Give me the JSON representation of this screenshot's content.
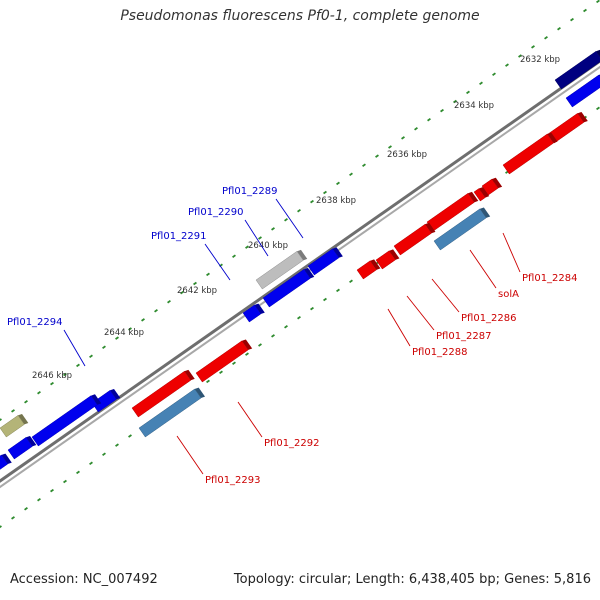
{
  "title": "Pseudomonas fluorescens Pf0-1, complete genome",
  "footer": {
    "accession": "Accession: NC_007492",
    "summary": "Topology: circular; Length: 6,438,405 bp; Genes: 5,816"
  },
  "colors": {
    "background": "#ffffff",
    "backbone": "#8a8a8a",
    "tick": "#2e8b2e",
    "forward_cds": "#0000ee",
    "reverse_cds": "#ee0000",
    "forward_label": "#0000cc",
    "reverse_label": "#cc0000",
    "reverse_rna": "#4682b4",
    "pseudo": "#bdbdbd",
    "other": "#b4b478",
    "dark_cds": "#000080"
  },
  "scale": {
    "unit": "kbp",
    "labels": [
      "2632 kbp",
      "2634 kbp",
      "2636 kbp",
      "2638 kbp",
      "2640 kbp",
      "2642 kbp",
      "2644 kbp",
      "2646 kbp"
    ]
  },
  "genes": [
    {
      "name": "Pfl01_2289",
      "strand": "forward"
    },
    {
      "name": "Pfl01_2290",
      "strand": "forward"
    },
    {
      "name": "Pfl01_2291",
      "strand": "forward"
    },
    {
      "name": "Pfl01_2294",
      "strand": "forward"
    },
    {
      "name": "Pfl01_2284",
      "strand": "reverse"
    },
    {
      "name": "solA",
      "strand": "reverse"
    },
    {
      "name": "Pfl01_2286",
      "strand": "reverse"
    },
    {
      "name": "Pfl01_2287",
      "strand": "reverse"
    },
    {
      "name": "Pfl01_2288",
      "strand": "reverse"
    },
    {
      "name": "Pfl01_2292",
      "strand": "reverse"
    },
    {
      "name": "Pfl01_2293",
      "strand": "reverse"
    }
  ]
}
